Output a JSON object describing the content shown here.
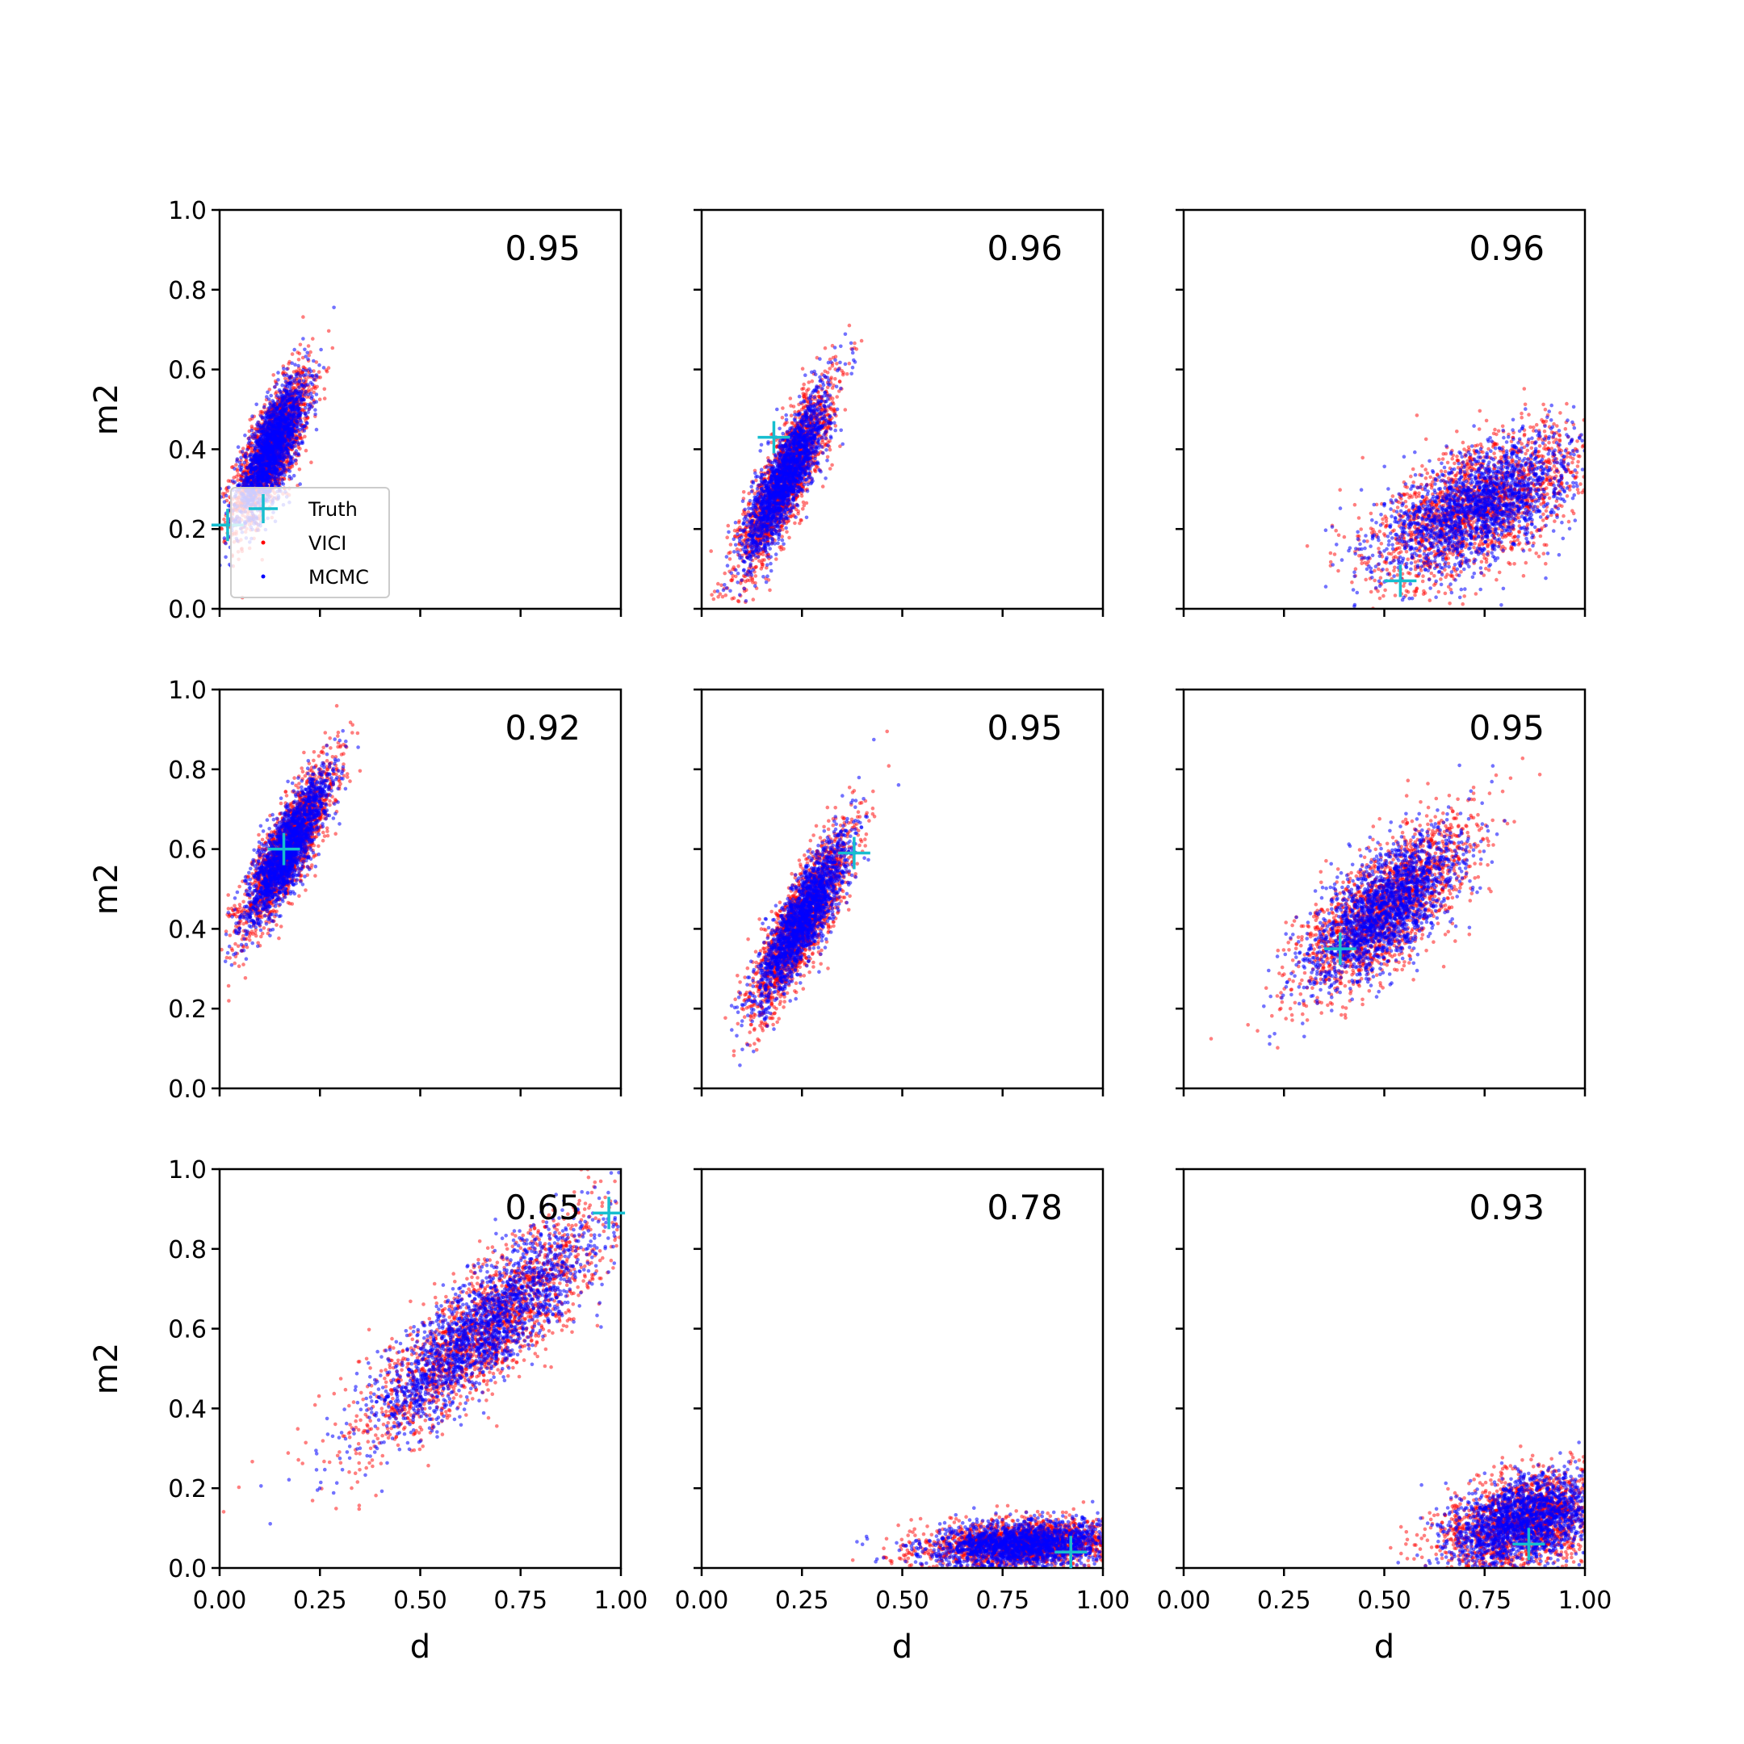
{
  "chart_data": {
    "type": "scatter",
    "layout": "3x3 grid of subplots",
    "xlabel": "d",
    "ylabel": "m2",
    "xlim": [
      0,
      1
    ],
    "ylim": [
      0,
      1
    ],
    "x_ticks": [
      "0.00",
      "0.25",
      "0.50",
      "0.75",
      "1.00"
    ],
    "y_ticks": [
      "0.0",
      "0.2",
      "0.4",
      "0.6",
      "0.8",
      "1.0"
    ],
    "legend": {
      "placement": "lower-left (top-left panel)",
      "entries": [
        {
          "label": "Truth",
          "marker": "plus",
          "color": "#17becf"
        },
        {
          "label": "VICI",
          "marker": "dot",
          "color": "#ff0000"
        },
        {
          "label": "MCMC",
          "marker": "dot",
          "color": "#0000ff"
        }
      ]
    },
    "series_colors": {
      "VICI": "#ff0000",
      "MCMC": "#0000ff",
      "Truth": "#17becf"
    },
    "panels": [
      {
        "score": "0.95",
        "truth": [
          0.02,
          0.21
        ],
        "clouds": [
          {
            "center": [
              0.13,
              0.4
            ],
            "spread_x": 0.045,
            "spread_y": 0.09,
            "corr": 0.75
          }
        ]
      },
      {
        "score": "0.96",
        "truth": [
          0.18,
          0.43
        ],
        "clouds": [
          {
            "center": [
              0.21,
              0.33
            ],
            "spread_x": 0.055,
            "spread_y": 0.11,
            "corr": 0.85
          }
        ]
      },
      {
        "score": "0.96",
        "truth": [
          0.54,
          0.07
        ],
        "clouds": [
          {
            "center": [
              0.74,
              0.26
            ],
            "spread_x": 0.13,
            "spread_y": 0.09,
            "corr": 0.6
          }
        ]
      },
      {
        "score": "0.92",
        "truth": [
          0.16,
          0.6
        ],
        "clouds": [
          {
            "center": [
              0.17,
              0.6
            ],
            "spread_x": 0.055,
            "spread_y": 0.1,
            "corr": 0.85
          }
        ]
      },
      {
        "score": "0.95",
        "truth": [
          0.38,
          0.59
        ],
        "clouds": [
          {
            "center": [
              0.25,
              0.42
            ],
            "spread_x": 0.06,
            "spread_y": 0.11,
            "corr": 0.85
          }
        ]
      },
      {
        "score": "0.95",
        "truth": [
          0.39,
          0.35
        ],
        "clouds": [
          {
            "center": [
              0.5,
              0.45
            ],
            "spread_x": 0.1,
            "spread_y": 0.1,
            "corr": 0.7
          }
        ]
      },
      {
        "score": "0.65",
        "truth": [
          0.97,
          0.89
        ],
        "clouds": [
          {
            "center": [
              0.66,
              0.6
            ],
            "spread_x": 0.15,
            "spread_y": 0.14,
            "corr": 0.85
          }
        ]
      },
      {
        "score": "0.78",
        "truth": [
          0.92,
          0.04
        ],
        "clouds": [
          {
            "center": [
              0.8,
              0.06
            ],
            "spread_x": 0.12,
            "spread_y": 0.03,
            "corr": 0.2
          }
        ]
      },
      {
        "score": "0.93",
        "truth": [
          0.86,
          0.06
        ],
        "clouds": [
          {
            "center": [
              0.85,
              0.12
            ],
            "spread_x": 0.1,
            "spread_y": 0.06,
            "corr": 0.4
          }
        ]
      }
    ]
  }
}
